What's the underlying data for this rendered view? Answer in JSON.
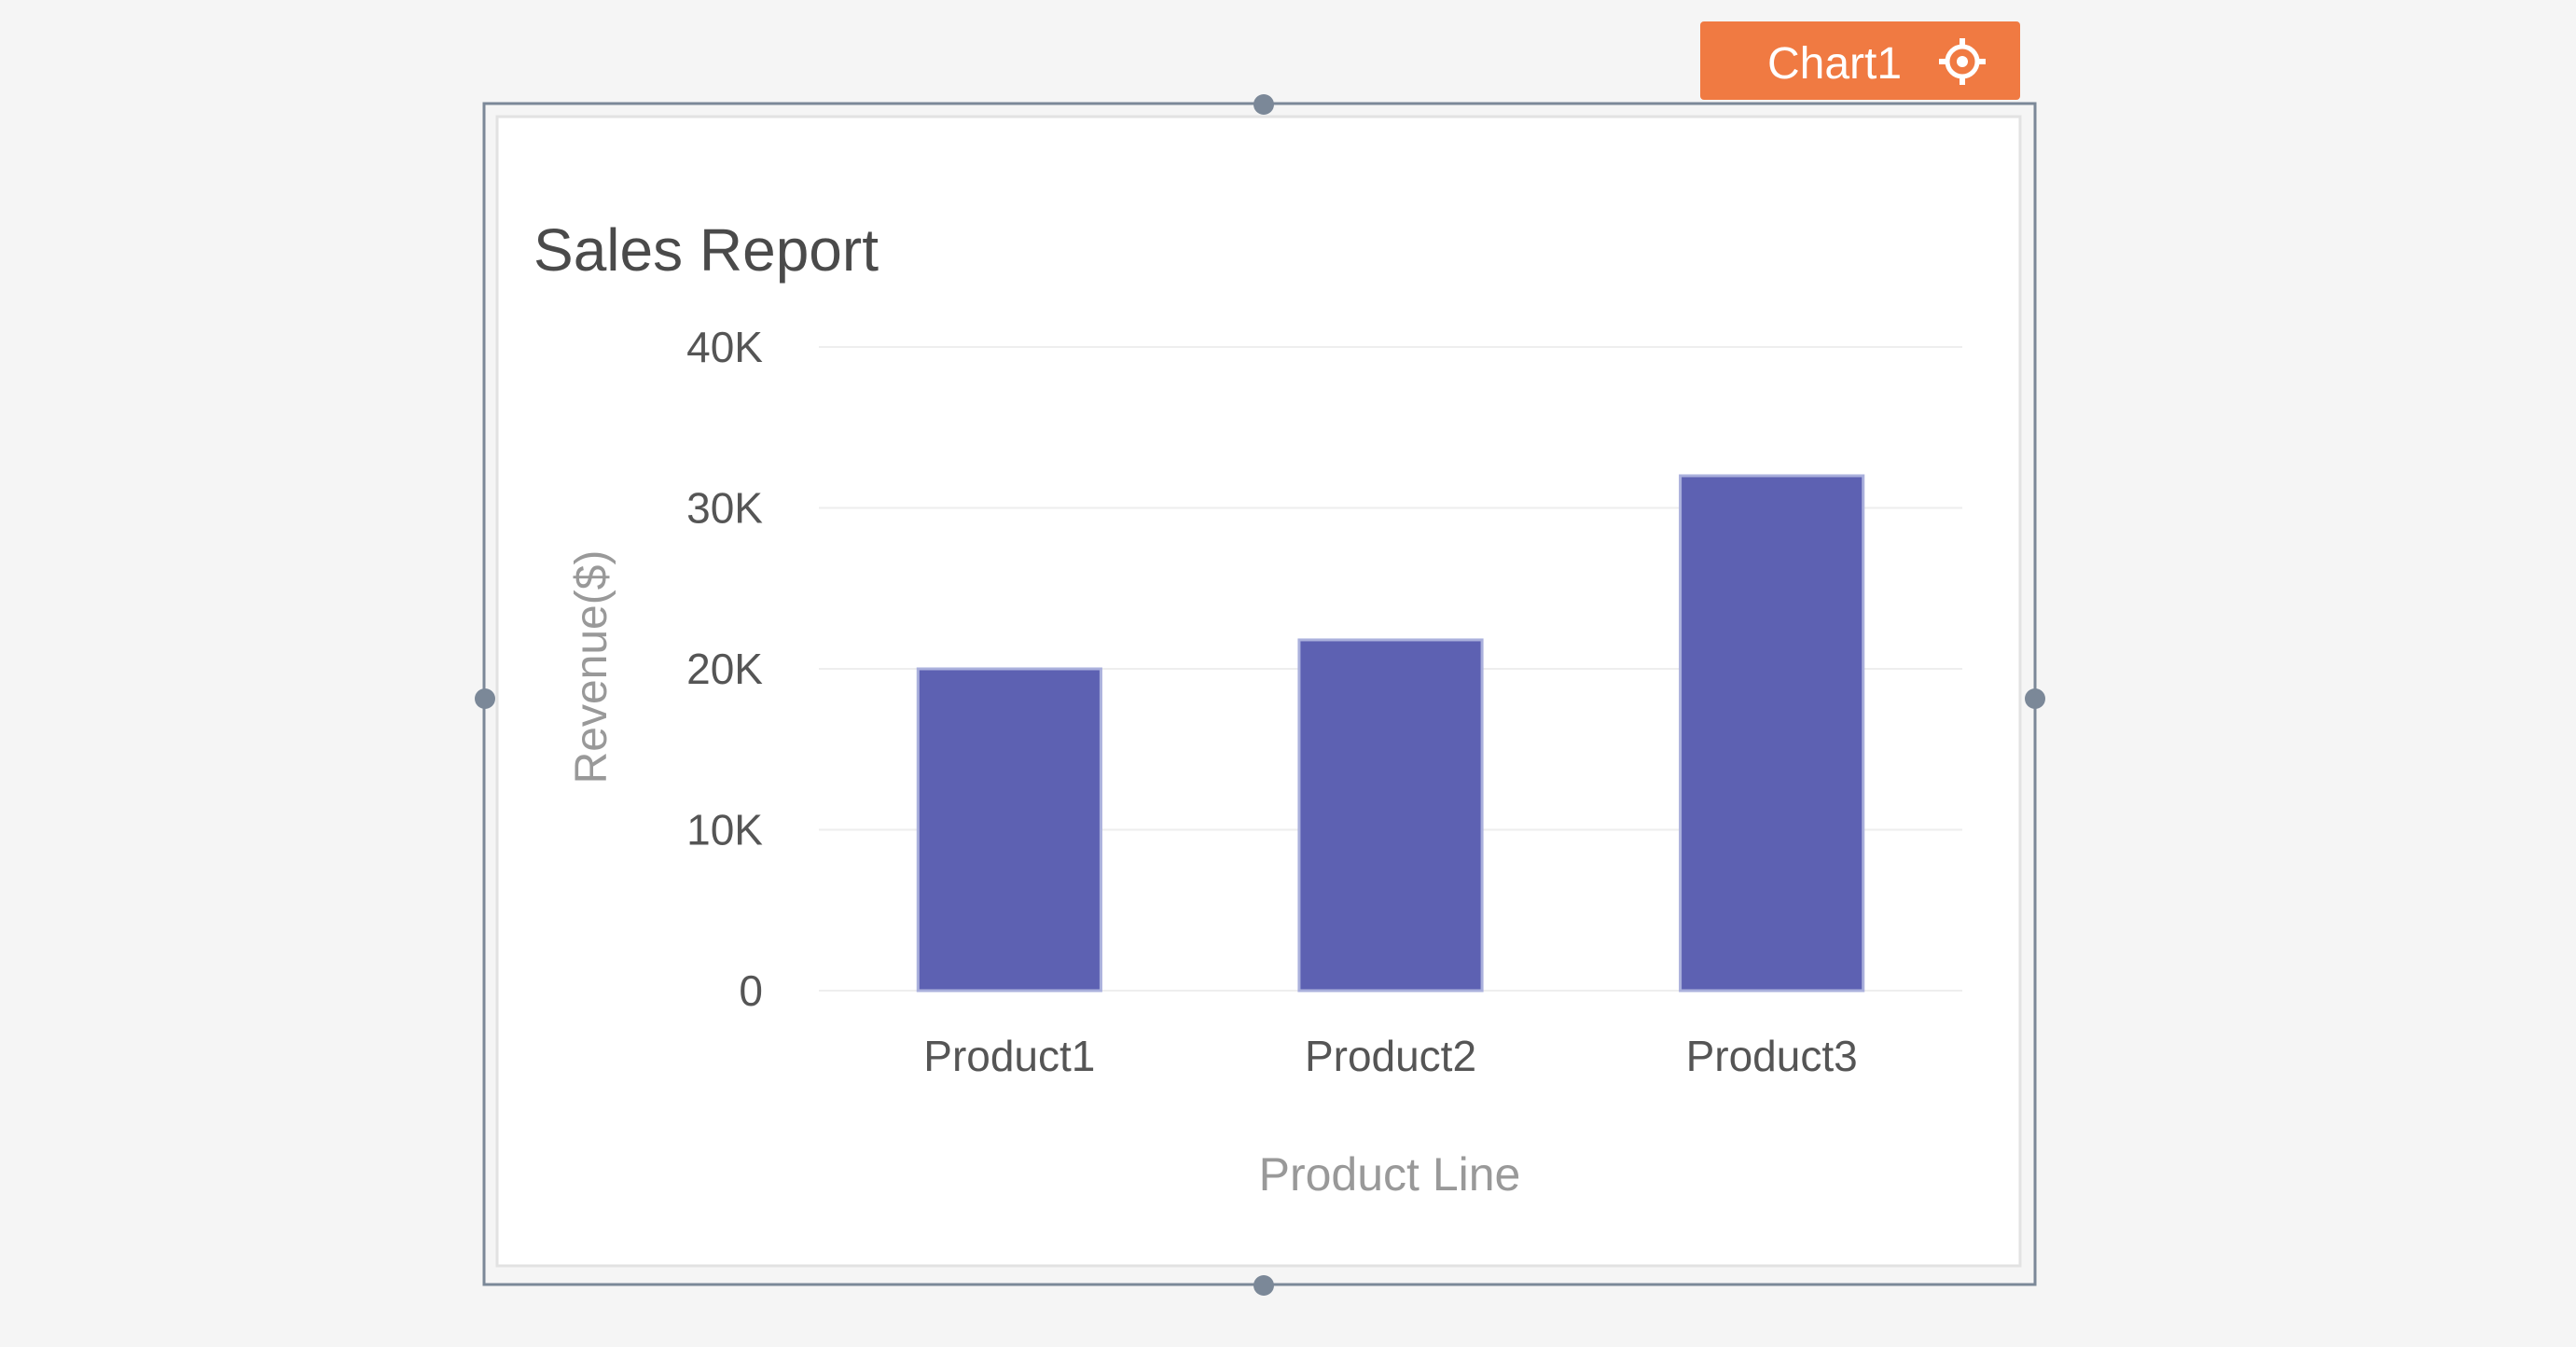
{
  "widget": {
    "tag_label": "Chart1",
    "tag_icon": "gear-icon"
  },
  "colors": {
    "background": "#f5f5f5",
    "tag": "#f07a42",
    "selection_border": "#7b8898",
    "bar": "#5d61b2",
    "bar_stroke": "#aab0dc",
    "title": "#4a4a4a",
    "tick_label": "#555555",
    "axis_title": "#999999",
    "grid": "#eeeeee"
  },
  "chart_data": {
    "type": "bar",
    "title": "Sales Report",
    "xlabel": "Product Line",
    "ylabel": "Revenue($)",
    "categories": [
      "Product1",
      "Product2",
      "Product3"
    ],
    "values": [
      20000,
      21800,
      32000
    ],
    "ylim": [
      0,
      40000
    ],
    "yticks": [
      0,
      10000,
      20000,
      30000,
      40000
    ],
    "ytick_labels": [
      "0",
      "10K",
      "20K",
      "30K",
      "40K"
    ],
    "grid": true
  }
}
